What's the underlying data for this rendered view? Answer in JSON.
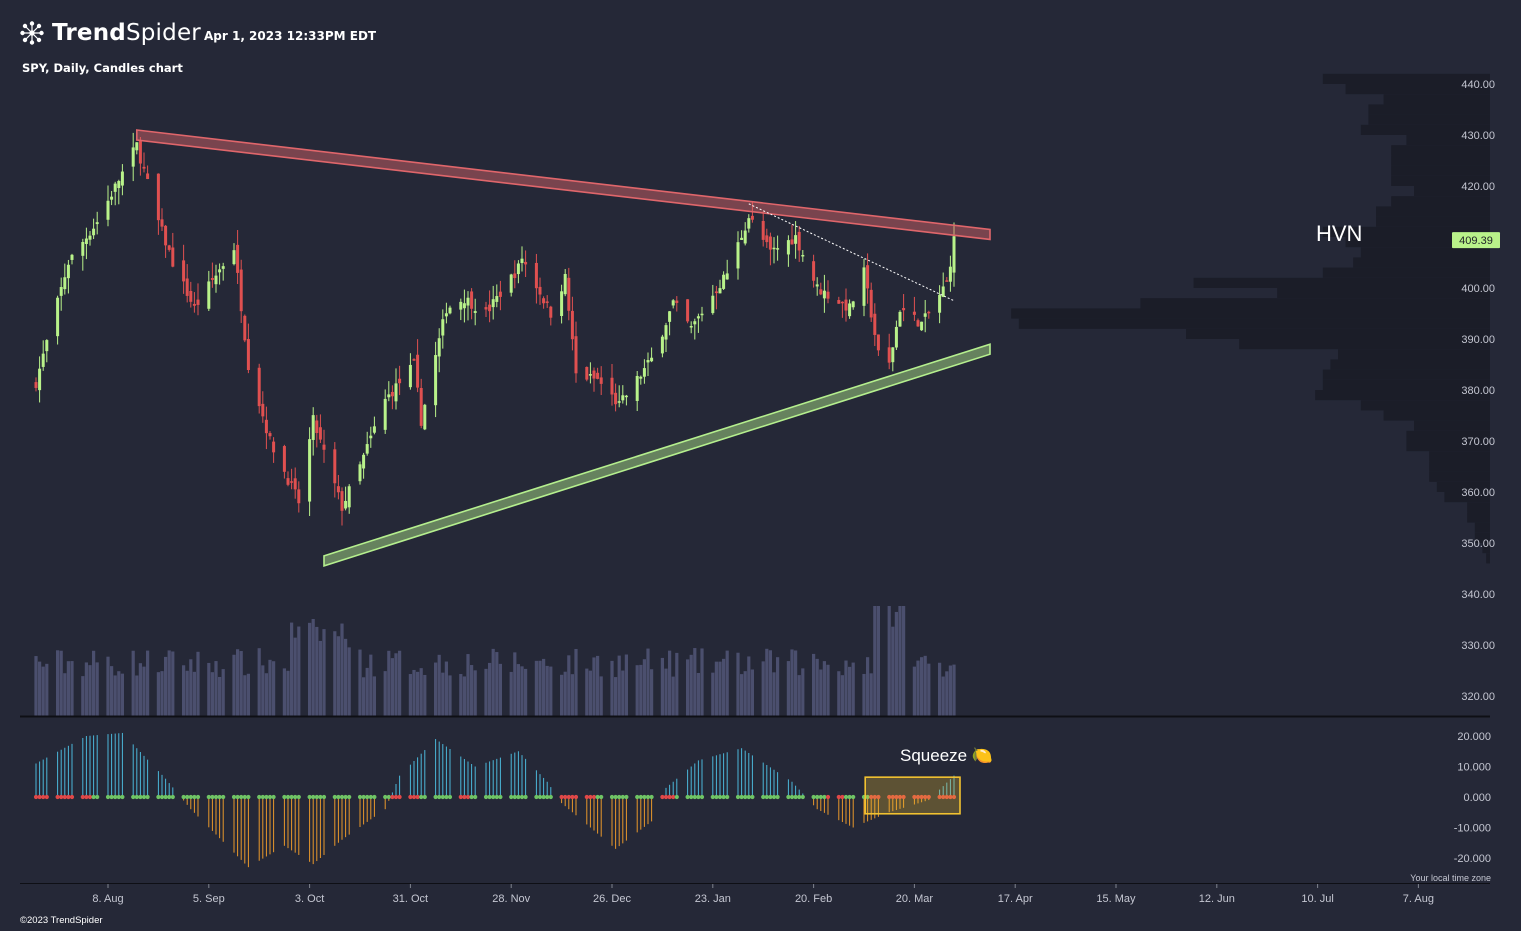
{
  "header": {
    "brand_bold": "Trend",
    "brand_light": "Spider",
    "timestamp": "Apr 1, 2023 12:33PM EDT",
    "symbol_line": "SPY, Daily, Candles chart"
  },
  "footer": {
    "copyright": "©2023 TrendSpider",
    "timezone_note": "Your local time zone"
  },
  "colors": {
    "background": "#252837",
    "bull": "#b9f28a",
    "bear": "#e05050",
    "resistance": "#e0666b",
    "support": "#b5ef8e",
    "volume": "#4b4f6e",
    "profile": "#1b1d28",
    "squeeze_pos": "#4bb6d8",
    "squeeze_neg": "#e8972b",
    "dot_on": "#e04848",
    "dot_off": "#6fc465",
    "box": "#f2c230"
  },
  "chart_data": {
    "type": "candlestick",
    "title": "SPY, Daily, Candles chart",
    "price_axis": {
      "ticks": [
        "440.00",
        "430.00",
        "420.00",
        "410.00",
        "400.00",
        "390.00",
        "380.00",
        "370.00",
        "360.00",
        "350.00",
        "340.00",
        "330.00",
        "320.00"
      ]
    },
    "indicator_axis": {
      "ticks": [
        "20.000",
        "10.000",
        "0.000",
        "-10.000",
        "-20.000"
      ]
    },
    "x_axis": {
      "ticks": [
        "8. Aug",
        "5. Sep",
        "3. Oct",
        "31. Oct",
        "28. Nov",
        "26. Dec",
        "23. Jan",
        "20. Feb",
        "20. Mar",
        "17. Apr",
        "15. May",
        "12. Jun",
        "10. Jul",
        "7. Aug"
      ]
    },
    "last_price": "409.39",
    "annotations": {
      "hvn": "HVN",
      "squeeze": "Squeeze 🍋"
    },
    "trendlines": {
      "resistance": {
        "from": [
          "2022-08-16",
          430.0
        ],
        "to": [
          "2023-04-10",
          410.5
        ]
      },
      "support": {
        "from": [
          "2022-10-07",
          346.5
        ],
        "to": [
          "2023-04-10",
          388.0
        ]
      },
      "dotted": {
        "from": [
          "2023-02-02",
          416.5
        ],
        "to": [
          "2023-03-31",
          397.5
        ]
      }
    },
    "anchors": [
      [
        "2022-07-19",
        381.5
      ],
      [
        "2022-07-28",
        405.0
      ],
      [
        "2022-08-05",
        413.0
      ],
      [
        "2022-08-16",
        428.0
      ],
      [
        "2022-08-22",
        413.0
      ],
      [
        "2022-08-26",
        405.0
      ],
      [
        "2022-09-01",
        396.0
      ],
      [
        "2022-09-12",
        408.0
      ],
      [
        "2022-09-16",
        385.0
      ],
      [
        "2022-09-22",
        370.0
      ],
      [
        "2022-09-30",
        358.0
      ],
      [
        "2022-10-04",
        374.0
      ],
      [
        "2022-10-12",
        357.0
      ],
      [
        "2022-10-17",
        365.0
      ],
      [
        "2022-10-24",
        378.0
      ],
      [
        "2022-11-01",
        385.0
      ],
      [
        "2022-11-03",
        374.0
      ],
      [
        "2022-11-10",
        396.0
      ],
      [
        "2022-11-15",
        398.0
      ],
      [
        "2022-11-21",
        395.0
      ],
      [
        "2022-11-30",
        404.0
      ],
      [
        "2022-12-01",
        406.0
      ],
      [
        "2022-12-09",
        395.0
      ],
      [
        "2022-12-13",
        402.0
      ],
      [
        "2022-12-16",
        383.0
      ],
      [
        "2022-12-22",
        382.0
      ],
      [
        "2022-12-28",
        377.0
      ],
      [
        "2023-01-06",
        386.0
      ],
      [
        "2023-01-12",
        397.0
      ],
      [
        "2023-01-17",
        392.0
      ],
      [
        "2023-01-27",
        403.0
      ],
      [
        "2023-02-02",
        414.0
      ],
      [
        "2023-02-08",
        407.0
      ],
      [
        "2023-02-15",
        410.0
      ],
      [
        "2023-02-21",
        400.0
      ],
      [
        "2023-03-02",
        396.0
      ],
      [
        "2023-03-06",
        403.0
      ],
      [
        "2023-03-10",
        387.0
      ],
      [
        "2023-03-13",
        385.0
      ],
      [
        "2023-03-16",
        396.0
      ],
      [
        "2023-03-22",
        393.0
      ],
      [
        "2023-03-24",
        395.0
      ],
      [
        "2023-03-29",
        401.0
      ],
      [
        "2023-03-31",
        409.39
      ]
    ],
    "volume_profile": [
      [
        441,
        22
      ],
      [
        439,
        19
      ],
      [
        437,
        14
      ],
      [
        435,
        16
      ],
      [
        433,
        16
      ],
      [
        431,
        17
      ],
      [
        429,
        11
      ],
      [
        427,
        13
      ],
      [
        425,
        13
      ],
      [
        423,
        13
      ],
      [
        421,
        13
      ],
      [
        419,
        10
      ],
      [
        417,
        13
      ],
      [
        415,
        15
      ],
      [
        413,
        15
      ],
      [
        411,
        22
      ],
      [
        409,
        19
      ],
      [
        407,
        17
      ],
      [
        405,
        18
      ],
      [
        403,
        22
      ],
      [
        401,
        39
      ],
      [
        399,
        28
      ],
      [
        397,
        46
      ],
      [
        395,
        63
      ],
      [
        393,
        62
      ],
      [
        391,
        40
      ],
      [
        389,
        33
      ],
      [
        387,
        20
      ],
      [
        385,
        21
      ],
      [
        383,
        22
      ],
      [
        381,
        22
      ],
      [
        379,
        23
      ],
      [
        377,
        17
      ],
      [
        375,
        14
      ],
      [
        373,
        10
      ],
      [
        371,
        11
      ],
      [
        369,
        11
      ],
      [
        367,
        8
      ],
      [
        365,
        8
      ],
      [
        363,
        8
      ],
      [
        361,
        7
      ],
      [
        359,
        6
      ],
      [
        357,
        3
      ],
      [
        355,
        3
      ],
      [
        353,
        2
      ],
      [
        351,
        2
      ],
      [
        349,
        1
      ],
      [
        347,
        0.5
      ]
    ]
  }
}
